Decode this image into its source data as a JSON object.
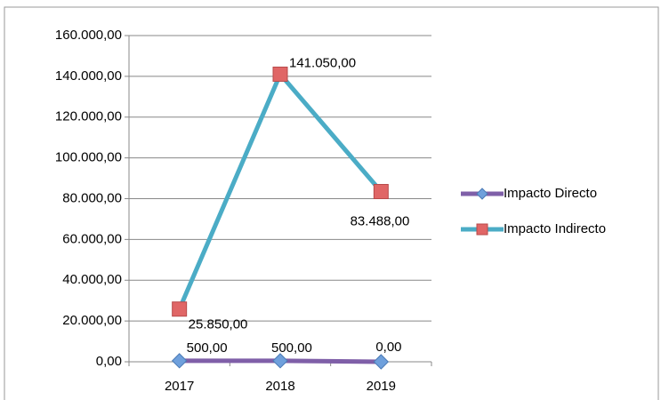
{
  "chart_data": {
    "type": "line",
    "categories": [
      "2017",
      "2018",
      "2019"
    ],
    "series": [
      {
        "name": "Impacto Directo",
        "color": "#7f5fa8",
        "marker_color": "#6fa0dc",
        "marker": "diamond",
        "values": [
          500,
          500,
          0
        ],
        "value_labels": [
          "500,00",
          "500,00",
          "0,00"
        ]
      },
      {
        "name": "Impacto Indirecto",
        "color": "#4bacc6",
        "marker_color": "#e06666",
        "marker": "square",
        "values": [
          25850,
          141050,
          83488
        ],
        "value_labels": [
          "25.850,00",
          "141.050,00",
          "83.488,00"
        ]
      }
    ],
    "ylim": [
      0,
      160000
    ],
    "yticks": [
      {
        "value": 0,
        "label": "0,00"
      },
      {
        "value": 20000,
        "label": "20.000,00"
      },
      {
        "value": 40000,
        "label": "40.000,00"
      },
      {
        "value": 60000,
        "label": "60.000,00"
      },
      {
        "value": 80000,
        "label": "80.000,00"
      },
      {
        "value": 100000,
        "label": "100.000,00"
      },
      {
        "value": 120000,
        "label": "120.000,00"
      },
      {
        "value": 140000,
        "label": "140.000,00"
      },
      {
        "value": 160000,
        "label": "160.000,00"
      }
    ],
    "grid": true,
    "legend": "right"
  }
}
